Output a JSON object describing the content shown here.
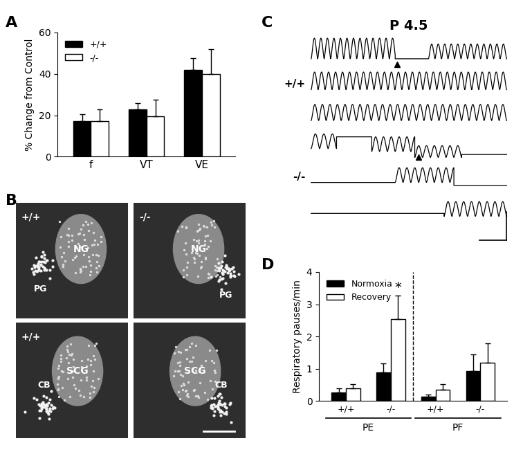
{
  "chart_data": [
    {
      "title": "A",
      "type": "bar",
      "categories": [
        "f",
        "VT",
        "VE"
      ],
      "ylabel": "% Change from Control",
      "ylim": [
        0,
        60
      ],
      "yticks": [
        0,
        20,
        40,
        60
      ],
      "legend": "upper left",
      "series": [
        {
          "name": "+/+",
          "color": "#000000",
          "values": [
            17,
            23,
            42
          ],
          "errors": [
            3.5,
            3,
            5.5
          ]
        },
        {
          "name": "-/-",
          "color": "#ffffff",
          "values": [
            17,
            19.5,
            40
          ],
          "errors": [
            6,
            8,
            12
          ]
        }
      ]
    },
    {
      "title": "B",
      "type": "image",
      "images": [
        {
          "genotype": "+/+",
          "ganglion": "NG",
          "body": "PG"
        },
        {
          "genotype": "-/-",
          "ganglion": "NG",
          "body": "PG"
        },
        {
          "genotype": "+/+",
          "ganglion": "SCG",
          "body": "CB"
        },
        {
          "genotype": null,
          "ganglion": "SCG",
          "body": "CB"
        }
      ]
    },
    {
      "title": "C",
      "type": "trace",
      "subtitle": "P 4.5",
      "groups": [
        {
          "label": "+/+",
          "traces": 3
        },
        {
          "label": "-/-",
          "traces": 3
        }
      ]
    },
    {
      "title": "D",
      "type": "bar",
      "categories": [
        "+/+",
        "-/-",
        "+/+",
        "-/-"
      ],
      "groups": [
        {
          "label": "PE",
          "span": [
            0,
            1
          ]
        },
        {
          "label": "PF",
          "span": [
            2,
            3
          ]
        }
      ],
      "ylabel": "Respiratory pauses/min",
      "ylim": [
        0,
        4
      ],
      "yticks": [
        0,
        1,
        2,
        3,
        4
      ],
      "legend": "upper left",
      "series": [
        {
          "name": "Normoxia",
          "color": "#000000",
          "values": [
            0.27,
            0.88,
            0.13,
            0.93
          ],
          "errors": [
            0.12,
            0.28,
            0.08,
            0.52
          ]
        },
        {
          "name": "Recovery",
          "color": "#ffffff",
          "values": [
            0.4,
            2.55,
            0.35,
            1.18
          ],
          "errors": [
            0.13,
            0.72,
            0.18,
            0.6
          ]
        }
      ],
      "annotations": [
        {
          "text": "*",
          "category": 1,
          "series": "Recovery"
        }
      ]
    }
  ]
}
